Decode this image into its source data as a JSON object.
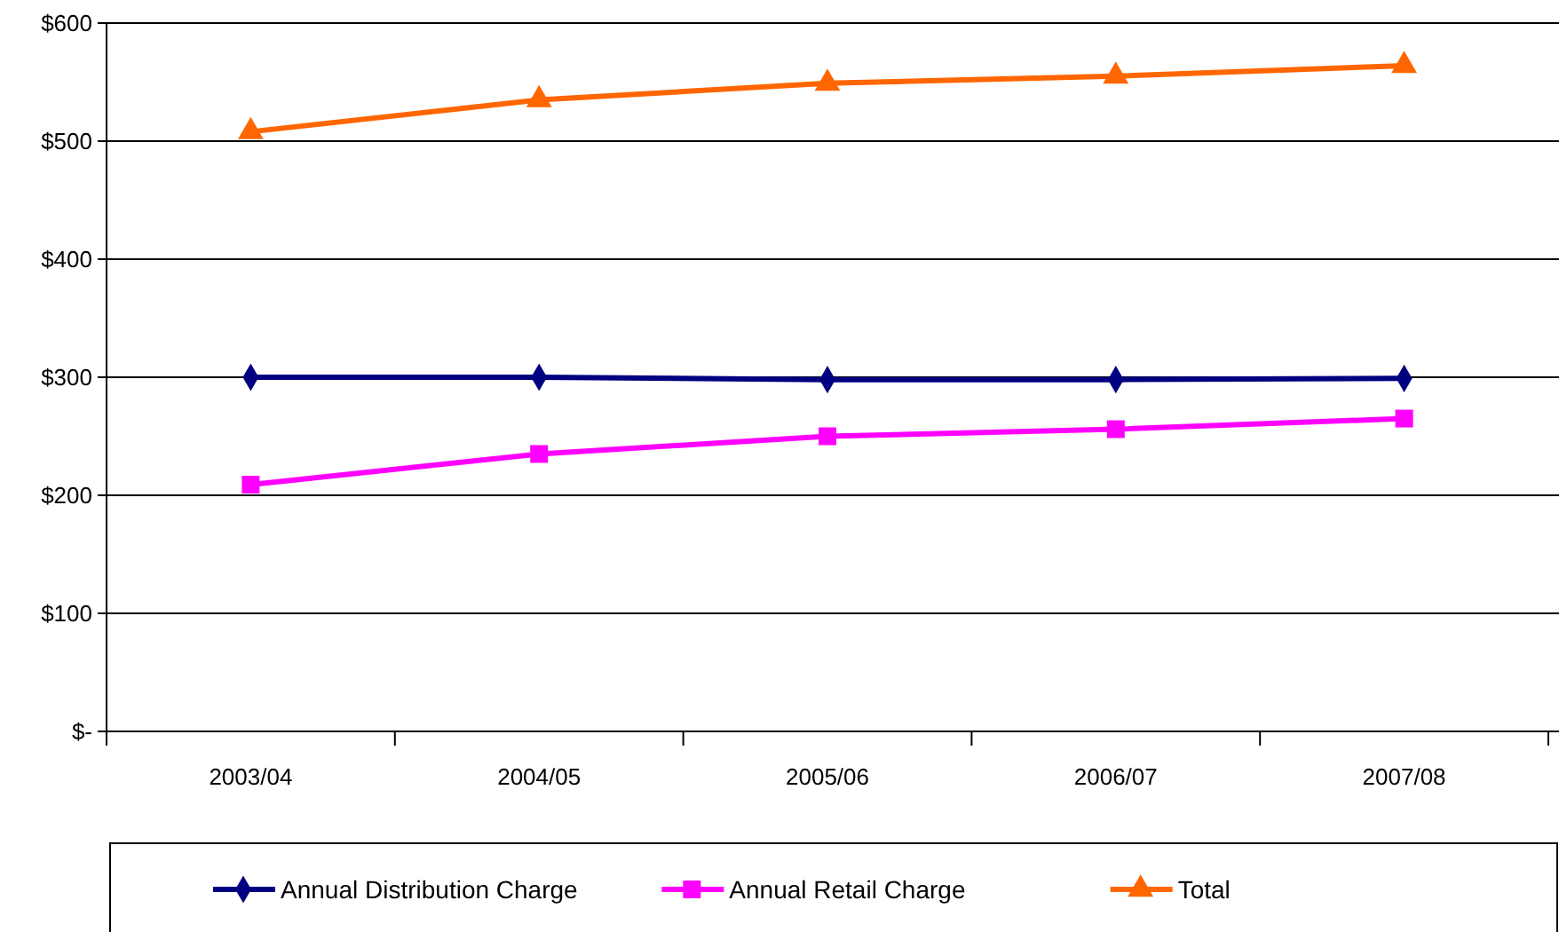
{
  "chart_data": {
    "type": "line",
    "categories": [
      "2003/04",
      "2004/05",
      "2005/06",
      "2006/07",
      "2007/08"
    ],
    "series": [
      {
        "name": "Annual Distribution Charge",
        "color": "#000080",
        "marker": "diamond",
        "values": [
          300,
          300,
          298,
          298,
          299
        ]
      },
      {
        "name": "Annual Retail Charge",
        "color": "#ff00ff",
        "marker": "square",
        "values": [
          209,
          235,
          250,
          256,
          265
        ]
      },
      {
        "name": "Total",
        "color": "#ff6600",
        "marker": "triangle",
        "values": [
          508,
          535,
          549,
          555,
          564
        ]
      }
    ],
    "ylim": [
      0,
      600
    ],
    "yticks": [
      {
        "value": 0,
        "label": "$-"
      },
      {
        "value": 100,
        "label": "$100"
      },
      {
        "value": 200,
        "label": "$200"
      },
      {
        "value": 300,
        "label": "$300"
      },
      {
        "value": 400,
        "label": "$400"
      },
      {
        "value": 500,
        "label": "$500"
      },
      {
        "value": 600,
        "label": "$600"
      }
    ],
    "grid": "y",
    "legend": "bottom"
  }
}
